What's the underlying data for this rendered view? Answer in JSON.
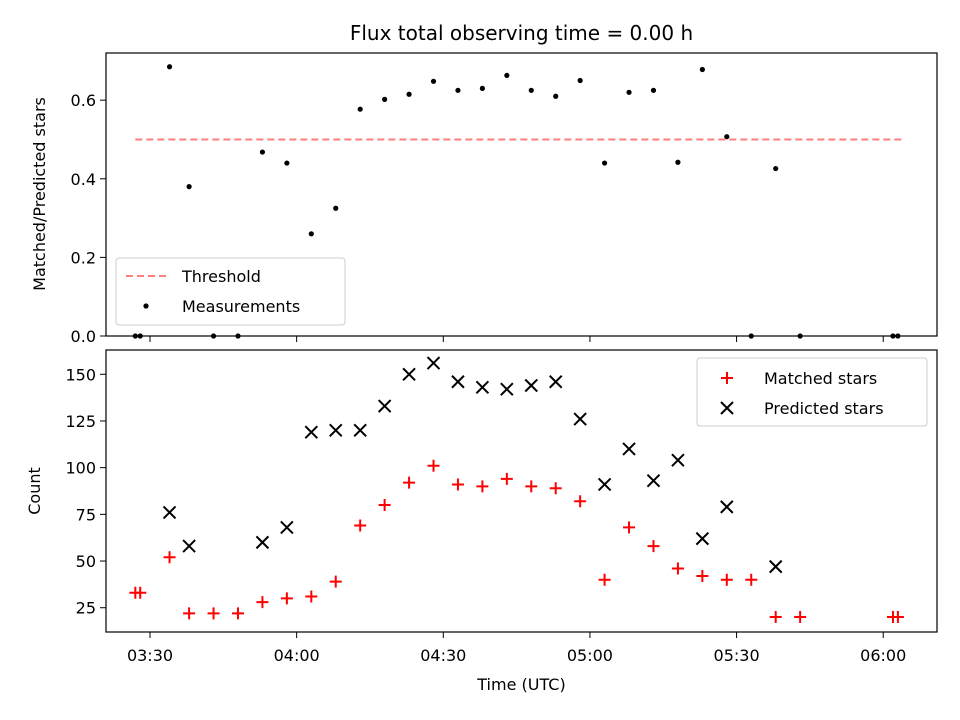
{
  "chart_data": [
    {
      "type": "scatter",
      "title": "Flux total observing time = 0.00 h",
      "xlabel": "",
      "ylabel": "Matched/Predicted stars",
      "ylim": [
        0,
        0.72
      ],
      "yticks": [
        "0.0",
        "0.2",
        "0.4",
        "0.6"
      ],
      "ytick_values": [
        0,
        0.2,
        0.4,
        0.6
      ],
      "legend_position": "lower-left",
      "threshold": {
        "name": "Threshold",
        "value": 0.5,
        "x_start": "03:27",
        "x_end": "06:04",
        "color": "#ff7f7f",
        "style": "dashed"
      },
      "series": [
        {
          "name": "Measurements",
          "color": "#000000",
          "marker": "dot",
          "x": [
            "03:27",
            "03:28",
            "03:34",
            "03:38",
            "03:43",
            "03:48",
            "03:53",
            "03:58",
            "04:03",
            "04:08",
            "04:13",
            "04:18",
            "04:23",
            "04:28",
            "04:33",
            "04:38",
            "04:43",
            "04:48",
            "04:53",
            "04:58",
            "05:03",
            "05:08",
            "05:13",
            "05:18",
            "05:23",
            "05:28",
            "05:33",
            "05:38",
            "05:43",
            "06:02",
            "06:03"
          ],
          "y": [
            0.0,
            0.0,
            0.685,
            0.38,
            0.0,
            0.0,
            0.468,
            0.44,
            0.26,
            0.325,
            0.577,
            0.602,
            0.615,
            0.648,
            0.625,
            0.63,
            0.663,
            0.625,
            0.61,
            0.65,
            0.44,
            0.62,
            0.625,
            0.442,
            0.678,
            0.507,
            0.0,
            0.426,
            0.0,
            0.0,
            0.0
          ]
        }
      ]
    },
    {
      "type": "scatter",
      "title": "",
      "xlabel": "Time (UTC)",
      "ylabel": "Count",
      "ylim": [
        12,
        163
      ],
      "yticks": [
        "25",
        "50",
        "75",
        "100",
        "125",
        "150"
      ],
      "ytick_values": [
        25,
        50,
        75,
        100,
        125,
        150
      ],
      "x_range": [
        "03:21",
        "06:11"
      ],
      "xticks": [
        "03:30",
        "04:00",
        "04:30",
        "05:00",
        "05:30",
        "06:00"
      ],
      "legend_position": "top-right",
      "series": [
        {
          "name": "Matched stars",
          "color": "#ff0000",
          "marker": "plus",
          "x": [
            "03:27",
            "03:28",
            "03:34",
            "03:38",
            "03:43",
            "03:48",
            "03:53",
            "03:58",
            "04:03",
            "04:08",
            "04:13",
            "04:18",
            "04:23",
            "04:28",
            "04:33",
            "04:38",
            "04:43",
            "04:48",
            "04:53",
            "04:58",
            "05:03",
            "05:08",
            "05:13",
            "05:18",
            "05:23",
            "05:28",
            "05:33",
            "05:38",
            "05:43",
            "06:02",
            "06:03"
          ],
          "y": [
            33,
            33,
            52,
            22,
            22,
            22,
            28,
            30,
            31,
            39,
            69,
            80,
            92,
            101,
            91,
            90,
            94,
            90,
            89,
            82,
            40,
            68,
            58,
            46,
            42,
            40,
            40,
            20,
            20,
            20,
            20
          ]
        },
        {
          "name": "Predicted stars",
          "color": "#000000",
          "marker": "x",
          "x": [
            "03:34",
            "03:38",
            "03:53",
            "03:58",
            "04:03",
            "04:08",
            "04:13",
            "04:18",
            "04:23",
            "04:28",
            "04:33",
            "04:38",
            "04:43",
            "04:48",
            "04:53",
            "04:58",
            "05:03",
            "05:08",
            "05:13",
            "05:18",
            "05:23",
            "05:28",
            "05:38"
          ],
          "y": [
            76,
            58,
            60,
            68,
            119,
            120,
            120,
            133,
            150,
            156,
            146,
            143,
            142,
            144,
            146,
            126,
            91,
            110,
            93,
            104,
            62,
            79,
            47
          ]
        }
      ]
    }
  ]
}
